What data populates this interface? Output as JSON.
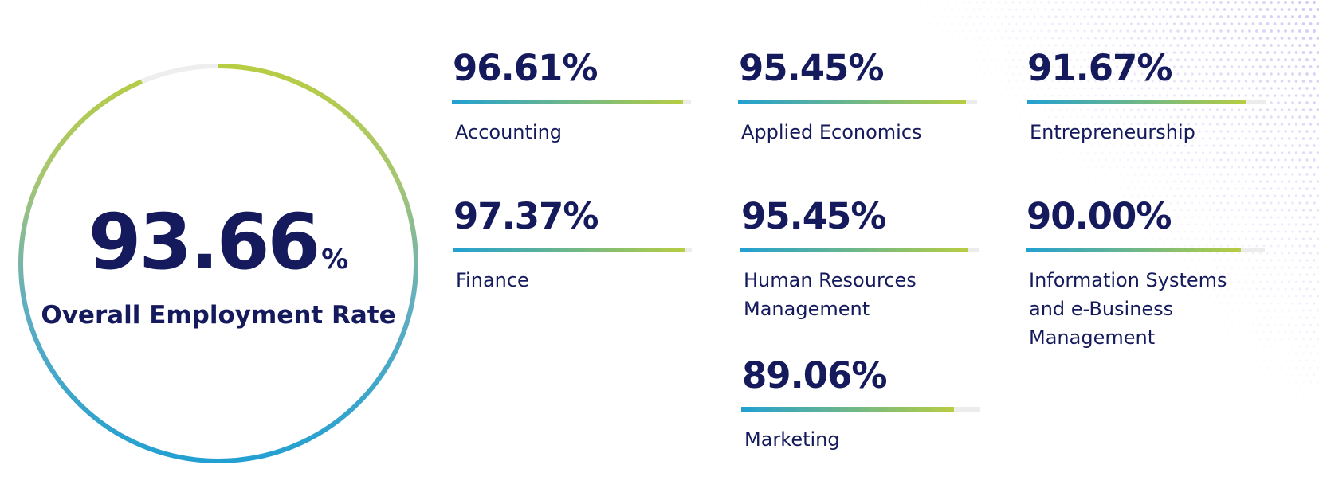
{
  "chart_data": {
    "type": "bar",
    "title": "",
    "xlabel": "",
    "ylabel": "",
    "ylim": [
      0,
      100
    ],
    "unit": "%",
    "overall": {
      "value": "93.66",
      "unit": "%",
      "label": "Overall Employment Rate",
      "fraction": 0.9366
    },
    "categories": [
      "Accounting",
      "Applied Economics",
      "Entrepreneurship",
      "Finance",
      "Human Resources Management",
      "Information Systems and e-Business Management",
      "Marketing"
    ],
    "values": [
      96.61,
      95.45,
      91.67,
      97.37,
      95.45,
      90.0,
      89.06
    ],
    "display_values": [
      "96.61%",
      "95.45%",
      "91.67%",
      "97.37%",
      "95.45%",
      "90.00%",
      "89.06%"
    ],
    "legend": "none",
    "grid": false
  },
  "colors": {
    "text": "#141a5c",
    "gradient_start": "#22a0d2",
    "gradient_end": "#b7cd42",
    "track": "#ececec",
    "dots": "#a99ce8"
  }
}
